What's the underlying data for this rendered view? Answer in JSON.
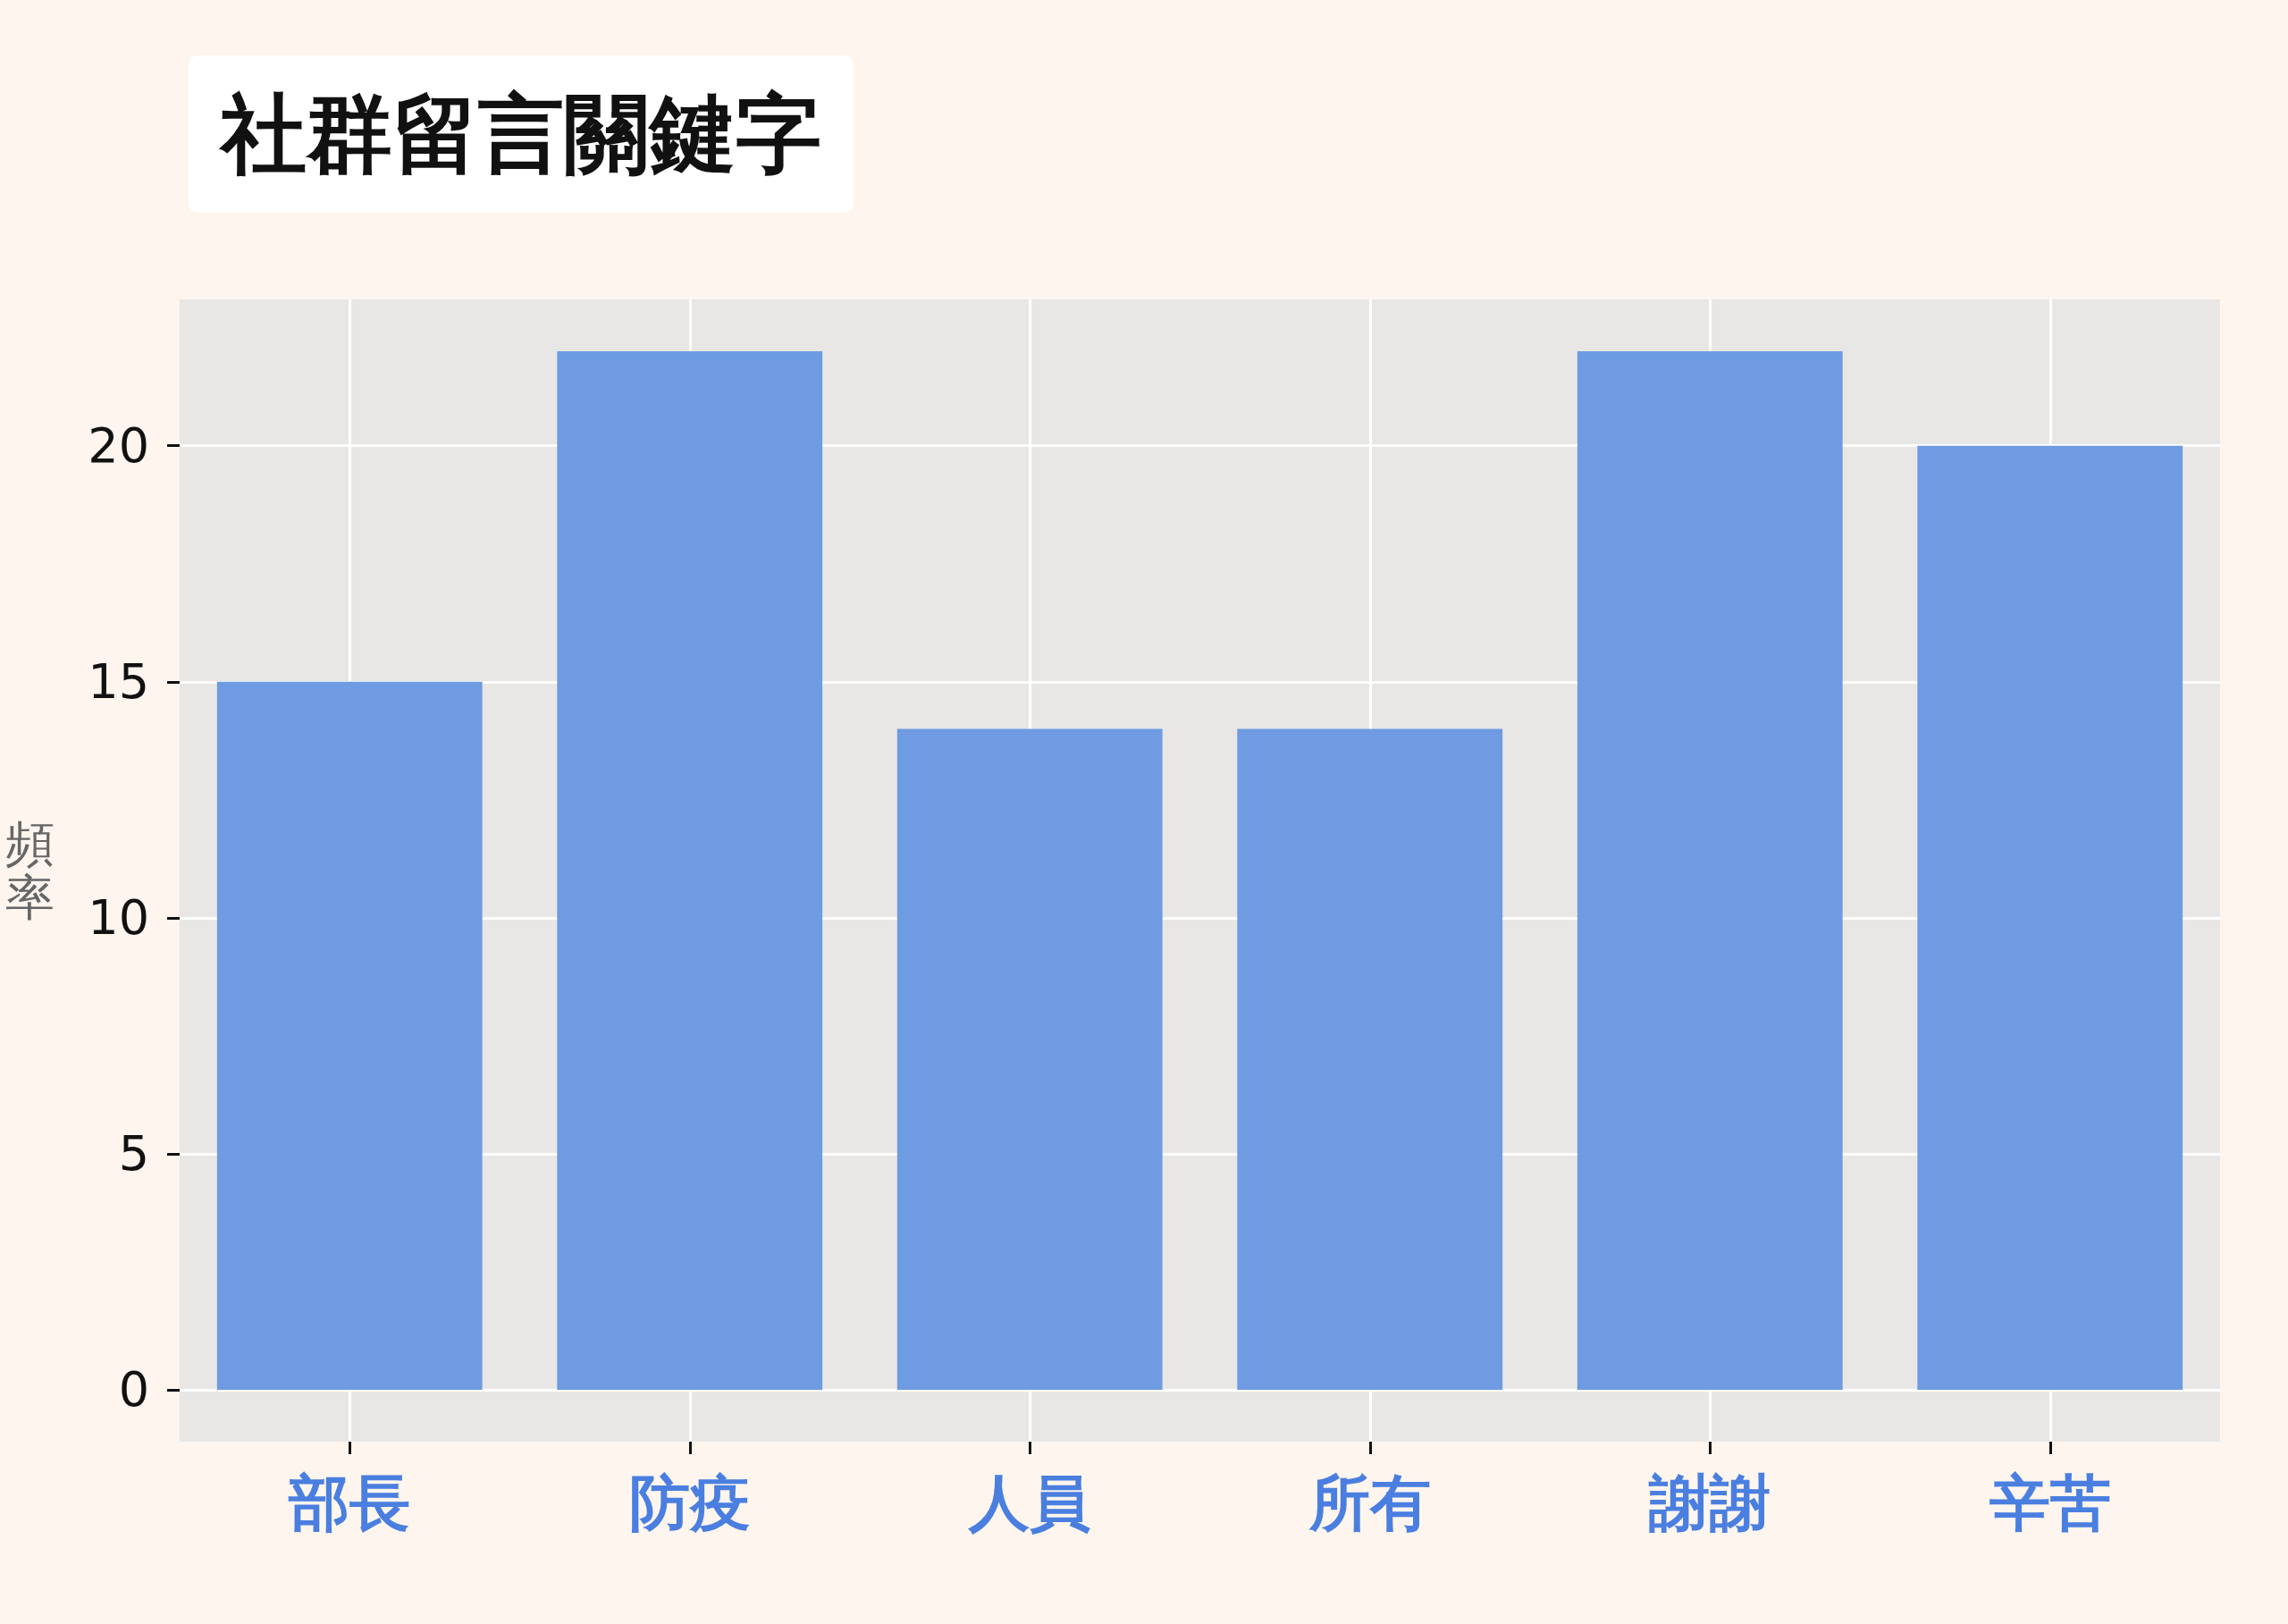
{
  "chart_data": {
    "type": "bar",
    "title": "社群留言關鍵字",
    "ylabel": "頻率",
    "categories": [
      "部長",
      "防疫",
      "人員",
      "所有",
      "謝謝",
      "辛苦"
    ],
    "values": [
      15,
      22,
      14,
      14,
      22,
      20
    ],
    "color": "#6f9be2",
    "ylim": [
      -1.1,
      23.1
    ],
    "yticks": [
      0,
      5,
      10,
      15,
      20
    ],
    "grid": true
  }
}
